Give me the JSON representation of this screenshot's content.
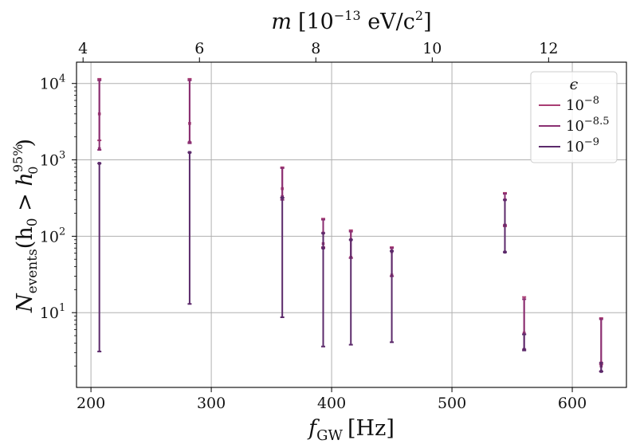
{
  "chart_data": {
    "type": "errorbar",
    "x_axis": {
      "label_main": "f",
      "label_sub": "GW",
      "label_unit": "[Hz]",
      "lim": [
        188,
        645
      ],
      "ticks": [
        200,
        300,
        400,
        500,
        600
      ],
      "tick_labels": [
        "200",
        "300",
        "400",
        "500",
        "600"
      ]
    },
    "top_axis": {
      "label_main": "m",
      "label_unit_pre": "[10",
      "label_unit_exp": "−13",
      "label_unit_post": " eV/c",
      "label_unit_post_exp": "2",
      "label_unit_close": "]",
      "ticks": [
        4,
        6,
        8,
        10,
        12
      ],
      "tick_labels": [
        "4",
        "6",
        "8",
        "10",
        "12"
      ],
      "f_gw_per_unit": 48.36
    },
    "y_axis": {
      "label_main": "N",
      "label_sub": "events",
      "label_mid": "(h",
      "label_mid_sub": "0",
      "label_gt": " > h",
      "label_sup": "95%",
      "label_sub2": "0",
      "label_close": ")",
      "scale": "log",
      "lim": [
        1.05,
        19000
      ],
      "ticks": [
        10,
        100,
        1000,
        10000
      ],
      "tick_base": [
        "10",
        "10",
        "10",
        "10"
      ],
      "tick_exp": [
        "1",
        "2",
        "3",
        "4"
      ]
    },
    "legend": {
      "title": "ϵ",
      "position": "top-right",
      "entries": [
        {
          "base": "10",
          "exp": "−8",
          "color": "#a93d73"
        },
        {
          "base": "10",
          "exp": "−8.5",
          "color": "#8a2f72"
        },
        {
          "base": "10",
          "exp": "−9",
          "color": "#5c2a6b"
        }
      ]
    },
    "grid": true,
    "series": [
      {
        "name": "10^-8",
        "color": "#a93d73",
        "points": [
          {
            "x": 207,
            "y": 4000,
            "lo": 1800,
            "hi": 11500
          },
          {
            "x": 282,
            "y": 3000,
            "lo": 1700,
            "hi": 11500
          },
          {
            "x": 359,
            "y": 420,
            "lo": 320,
            "hi": 800
          },
          {
            "x": 393,
            "y": 80,
            "lo": 72,
            "hi": 170
          },
          {
            "x": 416,
            "y": 53,
            "lo": 52,
            "hi": 120
          },
          {
            "x": 450,
            "y": 31,
            "lo": 30,
            "hi": 72
          },
          {
            "x": 544,
            "y": 140,
            "lo": 135,
            "hi": 370
          },
          {
            "x": 560,
            "y": 5.4,
            "lo": 5.2,
            "hi": 16
          },
          {
            "x": 624,
            "y": 2.2,
            "lo": 2.1,
            "hi": 8.5
          }
        ]
      },
      {
        "name": "10^-8.5",
        "color": "#8a2f72",
        "points": [
          {
            "x": 207,
            "y": 1400,
            "lo": 1350,
            "hi": 11000
          },
          {
            "x": 282,
            "y": 1700,
            "lo": 1650,
            "hi": 11000
          },
          {
            "x": 359,
            "y": 330,
            "lo": 300,
            "hi": 780
          },
          {
            "x": 393,
            "y": 110,
            "lo": 70,
            "hi": 165
          },
          {
            "x": 416,
            "y": 90,
            "lo": 52,
            "hi": 115
          },
          {
            "x": 450,
            "y": 63,
            "lo": 30,
            "hi": 70
          },
          {
            "x": 544,
            "y": 300,
            "lo": 140,
            "hi": 360
          },
          {
            "x": 560,
            "y": 5.3,
            "lo": 3.3,
            "hi": 15
          },
          {
            "x": 624,
            "y": 2.0,
            "lo": 1.7,
            "hi": 8.2
          }
        ]
      },
      {
        "name": "10^-9",
        "color": "#5c2a6b",
        "points": [
          {
            "x": 207,
            "y": 900,
            "lo": 3.1,
            "hi": 900
          },
          {
            "x": 282,
            "y": 1250,
            "lo": 13,
            "hi": 1250
          },
          {
            "x": 359,
            "y": 320,
            "lo": 8.7,
            "hi": 320
          },
          {
            "x": 393,
            "y": 70,
            "lo": 3.6,
            "hi": 110
          },
          {
            "x": 416,
            "y": 90,
            "lo": 3.8,
            "hi": 90
          },
          {
            "x": 450,
            "y": 64,
            "lo": 4.1,
            "hi": 64
          },
          {
            "x": 544,
            "y": 62,
            "lo": 62,
            "hi": 300
          },
          {
            "x": 560,
            "y": 3.3,
            "lo": 3.2,
            "hi": 5.2
          },
          {
            "x": 624,
            "y": 1.7,
            "lo": 1.7,
            "hi": 2.2
          }
        ]
      }
    ]
  }
}
